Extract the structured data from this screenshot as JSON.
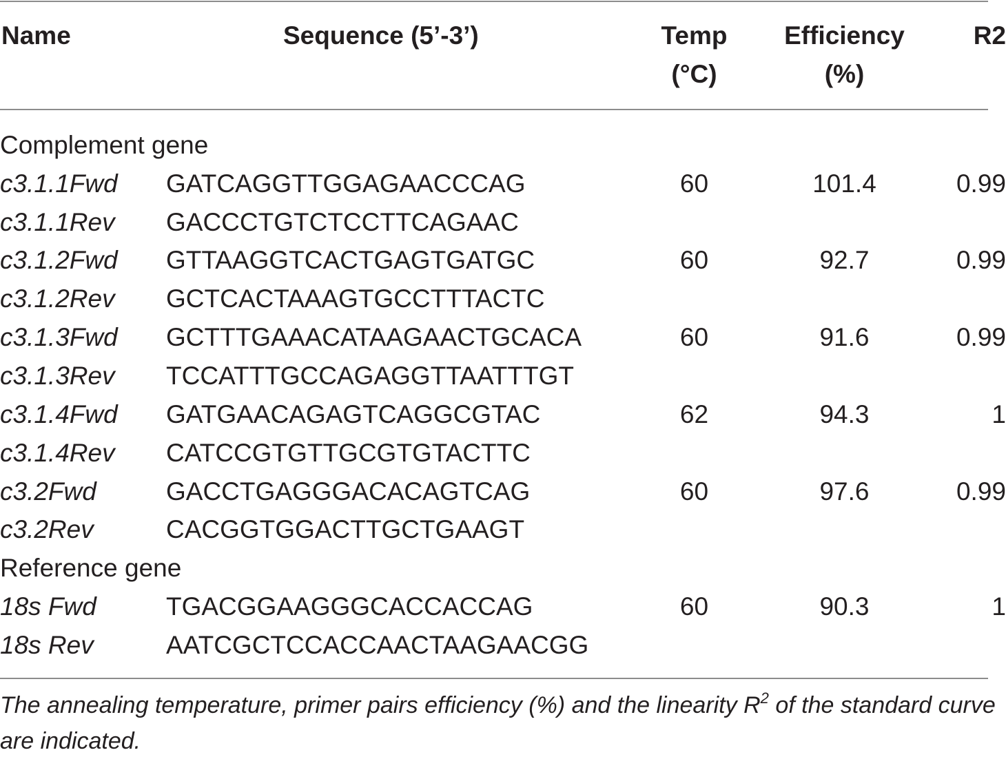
{
  "headers": {
    "name": "Name",
    "sequence": "Sequence (5’-3’)",
    "temp_line1": "Temp",
    "temp_line2": "(°C)",
    "efficiency_line1": "Efficiency",
    "efficiency_line2": "(%)",
    "r2": "R2"
  },
  "sections": [
    {
      "title": "Complement gene",
      "rows": [
        {
          "name": "c3.1.1Fwd",
          "sequence": "GATCAGGTTGGAGAACCCAG",
          "temp": "60",
          "efficiency": "101.4",
          "r2": "0.99"
        },
        {
          "name": "c3.1.1Rev",
          "sequence": "GACCCTGTCTCCTTCAGAAC",
          "temp": "",
          "efficiency": "",
          "r2": ""
        },
        {
          "name": "c3.1.2Fwd",
          "sequence": "GTTAAGGTCACTGAGTGATGC",
          "temp": "60",
          "efficiency": "92.7",
          "r2": "0.99"
        },
        {
          "name": "c3.1.2Rev",
          "sequence": "GCTCACTAAAGTGCCTTTACTC",
          "temp": "",
          "efficiency": "",
          "r2": ""
        },
        {
          "name": "c3.1.3Fwd",
          "sequence": "GCTTTGAAACATAAGAACTGCACA",
          "temp": "60",
          "efficiency": "91.6",
          "r2": "0.99"
        },
        {
          "name": "c3.1.3Rev",
          "sequence": "TCCATTTGCCAGAGGTTAATTTGT",
          "temp": "",
          "efficiency": "",
          "r2": ""
        },
        {
          "name": "c3.1.4Fwd",
          "sequence": "GATGAACAGAGTCAGGCGTAC",
          "temp": "62",
          "efficiency": "94.3",
          "r2": "1"
        },
        {
          "name": "c3.1.4Rev",
          "sequence": "CATCCGTGTTGCGTGTACTTC",
          "temp": "",
          "efficiency": "",
          "r2": ""
        },
        {
          "name": "c3.2Fwd",
          "sequence": "GACCTGAGGGACACAGTCAG",
          "temp": "60",
          "efficiency": "97.6",
          "r2": "0.99"
        },
        {
          "name": "c3.2Rev",
          "sequence": "CACGGTGGACTTGCTGAAGT",
          "temp": "",
          "efficiency": "",
          "r2": ""
        }
      ]
    },
    {
      "title": "Reference gene",
      "rows": [
        {
          "name": "18s Fwd",
          "sequence": "TGACGGAAGGGCACCACCAG",
          "temp": "60",
          "efficiency": "90.3",
          "r2": "1"
        },
        {
          "name": "18s Rev",
          "sequence": "AATCGCTCCACCAACTAAGAACGG",
          "temp": "",
          "efficiency": "",
          "r2": ""
        }
      ]
    }
  ],
  "footnote": {
    "before_sup": "The annealing temperature, primer pairs efficiency (%) and the linearity R",
    "sup": "2",
    "after_sup": " of the standard curve are indicated."
  }
}
